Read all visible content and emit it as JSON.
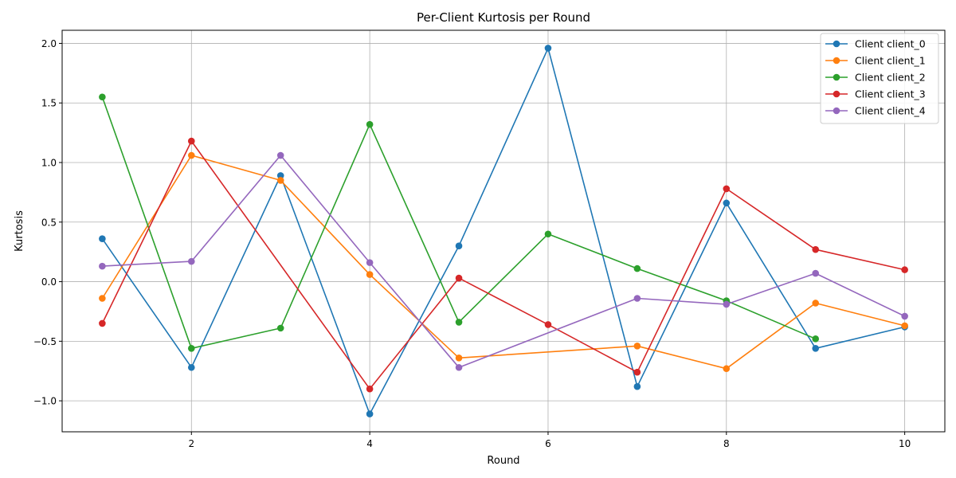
{
  "chart_data": {
    "type": "line",
    "title": "Per-Client Kurtosis per Round",
    "xlabel": "Round",
    "ylabel": "Kurtosis",
    "xlim": [
      0.55,
      10.45
    ],
    "ylim": [
      -1.26,
      2.11
    ],
    "xticks": [
      2,
      4,
      6,
      8,
      10
    ],
    "yticks": [
      -1.0,
      -0.5,
      0.0,
      0.5,
      1.0,
      1.5,
      2.0
    ],
    "xtick_labels": [
      "2",
      "4",
      "6",
      "8",
      "10"
    ],
    "ytick_labels": [
      "−1.0",
      "−0.5",
      "0.0",
      "0.5",
      "1.0",
      "1.5",
      "2.0"
    ],
    "grid": true,
    "legend_position": "top-right",
    "series": [
      {
        "name": "Client client_0",
        "color": "#1f77b4",
        "points": [
          [
            1,
            0.36
          ],
          [
            2,
            -0.72
          ],
          [
            3,
            0.89
          ],
          [
            4,
            -1.11
          ],
          [
            5,
            0.3
          ],
          [
            6,
            1.96
          ],
          [
            7,
            -0.88
          ],
          [
            8,
            0.66
          ],
          [
            9,
            -0.56
          ],
          [
            10,
            -0.38
          ]
        ]
      },
      {
        "name": "Client client_1",
        "color": "#ff7f0e",
        "points": [
          [
            1,
            -0.14
          ],
          [
            2,
            1.06
          ],
          [
            3,
            0.85
          ],
          [
            4,
            0.06
          ],
          [
            5,
            -0.64
          ],
          [
            7,
            -0.54
          ],
          [
            8,
            -0.73
          ],
          [
            9,
            -0.18
          ],
          [
            10,
            -0.37
          ]
        ]
      },
      {
        "name": "Client client_2",
        "color": "#2ca02c",
        "points": [
          [
            1,
            1.55
          ],
          [
            2,
            -0.56
          ],
          [
            3,
            -0.39
          ],
          [
            4,
            1.32
          ],
          [
            5,
            -0.34
          ],
          [
            6,
            0.4
          ],
          [
            7,
            0.11
          ],
          [
            8,
            -0.16
          ],
          [
            9,
            -0.48
          ]
        ]
      },
      {
        "name": "Client client_3",
        "color": "#d62728",
        "points": [
          [
            1,
            -0.35
          ],
          [
            2,
            1.18
          ],
          [
            4,
            -0.9
          ],
          [
            5,
            0.03
          ],
          [
            6,
            -0.36
          ],
          [
            7,
            -0.76
          ],
          [
            8,
            0.78
          ],
          [
            9,
            0.27
          ],
          [
            10,
            0.1
          ]
        ]
      },
      {
        "name": "Client client_4",
        "color": "#9467bd",
        "points": [
          [
            1,
            0.13
          ],
          [
            2,
            0.17
          ],
          [
            3,
            1.06
          ],
          [
            4,
            0.16
          ],
          [
            5,
            -0.72
          ],
          [
            7,
            -0.14
          ],
          [
            8,
            -0.19
          ],
          [
            9,
            0.07
          ],
          [
            10,
            -0.29
          ]
        ]
      }
    ]
  }
}
